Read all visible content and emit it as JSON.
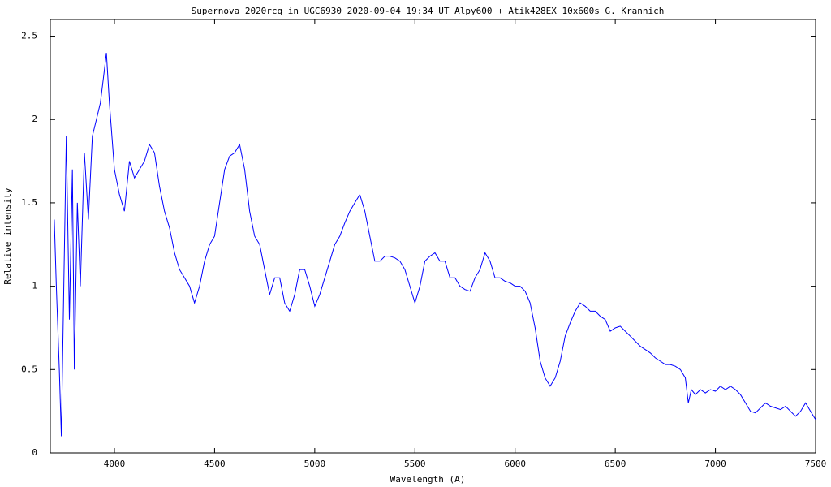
{
  "chart_data": {
    "type": "line",
    "title": "Supernova 2020rcq in UGC6930   2020-09-04 19:34 UT   Alpy600 + Atik428EX  10x600s   G. Krannich",
    "x_label": "Wavelength (A)",
    "y_label": "Relative intensity",
    "color": "#0000ff",
    "xlim": [
      3680,
      7500
    ],
    "ylim": [
      0,
      2.6
    ],
    "xticks": [
      4000,
      4500,
      5000,
      5500,
      6000,
      6500,
      7000,
      7500
    ],
    "yticks": [
      0,
      0.5,
      1,
      1.5,
      2,
      2.5
    ],
    "x": [
      3700,
      3710,
      3725,
      3735,
      3750,
      3760,
      3775,
      3790,
      3800,
      3815,
      3830,
      3850,
      3870,
      3890,
      3910,
      3930,
      3950,
      3960,
      3975,
      4000,
      4025,
      4050,
      4075,
      4100,
      4125,
      4150,
      4175,
      4200,
      4225,
      4250,
      4275,
      4300,
      4325,
      4350,
      4375,
      4400,
      4425,
      4450,
      4475,
      4500,
      4525,
      4550,
      4575,
      4600,
      4625,
      4650,
      4675,
      4700,
      4725,
      4750,
      4775,
      4800,
      4825,
      4850,
      4875,
      4900,
      4925,
      4950,
      4975,
      5000,
      5025,
      5050,
      5075,
      5100,
      5125,
      5150,
      5175,
      5200,
      5225,
      5250,
      5275,
      5300,
      5325,
      5350,
      5375,
      5400,
      5425,
      5450,
      5475,
      5500,
      5525,
      5550,
      5575,
      5600,
      5625,
      5650,
      5675,
      5700,
      5725,
      5750,
      5775,
      5800,
      5825,
      5850,
      5875,
      5900,
      5925,
      5950,
      5975,
      6000,
      6025,
      6050,
      6075,
      6100,
      6125,
      6150,
      6175,
      6200,
      6225,
      6250,
      6275,
      6300,
      6325,
      6350,
      6375,
      6400,
      6425,
      6450,
      6475,
      6500,
      6525,
      6550,
      6575,
      6600,
      6625,
      6650,
      6675,
      6700,
      6725,
      6750,
      6775,
      6800,
      6825,
      6850,
      6865,
      6880,
      6900,
      6925,
      6950,
      6975,
      7000,
      7025,
      7050,
      7075,
      7100,
      7125,
      7150,
      7175,
      7200,
      7225,
      7250,
      7275,
      7300,
      7325,
      7350,
      7375,
      7400,
      7425,
      7450,
      7475,
      7500
    ],
    "values": [
      1.4,
      1.0,
      0.5,
      0.1,
      1.2,
      1.9,
      0.8,
      1.7,
      0.5,
      1.5,
      1.0,
      1.8,
      1.4,
      1.9,
      2.0,
      2.1,
      2.3,
      2.4,
      2.1,
      1.7,
      1.55,
      1.45,
      1.75,
      1.65,
      1.7,
      1.75,
      1.85,
      1.8,
      1.6,
      1.45,
      1.35,
      1.2,
      1.1,
      1.05,
      1.0,
      0.9,
      1.0,
      1.15,
      1.25,
      1.3,
      1.5,
      1.7,
      1.78,
      1.8,
      1.85,
      1.7,
      1.45,
      1.3,
      1.25,
      1.1,
      0.95,
      1.05,
      1.05,
      0.9,
      0.85,
      0.95,
      1.1,
      1.1,
      1.0,
      0.88,
      0.95,
      1.05,
      1.15,
      1.25,
      1.3,
      1.38,
      1.45,
      1.5,
      1.55,
      1.45,
      1.3,
      1.15,
      1.15,
      1.18,
      1.18,
      1.17,
      1.15,
      1.1,
      1.0,
      0.9,
      1.0,
      1.15,
      1.18,
      1.2,
      1.15,
      1.15,
      1.05,
      1.05,
      1.0,
      0.98,
      0.97,
      1.05,
      1.1,
      1.2,
      1.15,
      1.05,
      1.05,
      1.03,
      1.02,
      1.0,
      1.0,
      0.97,
      0.9,
      0.75,
      0.55,
      0.45,
      0.4,
      0.45,
      0.55,
      0.7,
      0.78,
      0.85,
      0.9,
      0.88,
      0.85,
      0.85,
      0.82,
      0.8,
      0.73,
      0.75,
      0.76,
      0.73,
      0.7,
      0.67,
      0.64,
      0.62,
      0.6,
      0.57,
      0.55,
      0.53,
      0.53,
      0.52,
      0.5,
      0.45,
      0.3,
      0.38,
      0.35,
      0.38,
      0.36,
      0.38,
      0.37,
      0.4,
      0.38,
      0.4,
      0.38,
      0.35,
      0.3,
      0.25,
      0.24,
      0.27,
      0.3,
      0.28,
      0.27,
      0.26,
      0.28,
      0.25,
      0.22,
      0.25,
      0.3,
      0.25,
      0.2
    ]
  }
}
